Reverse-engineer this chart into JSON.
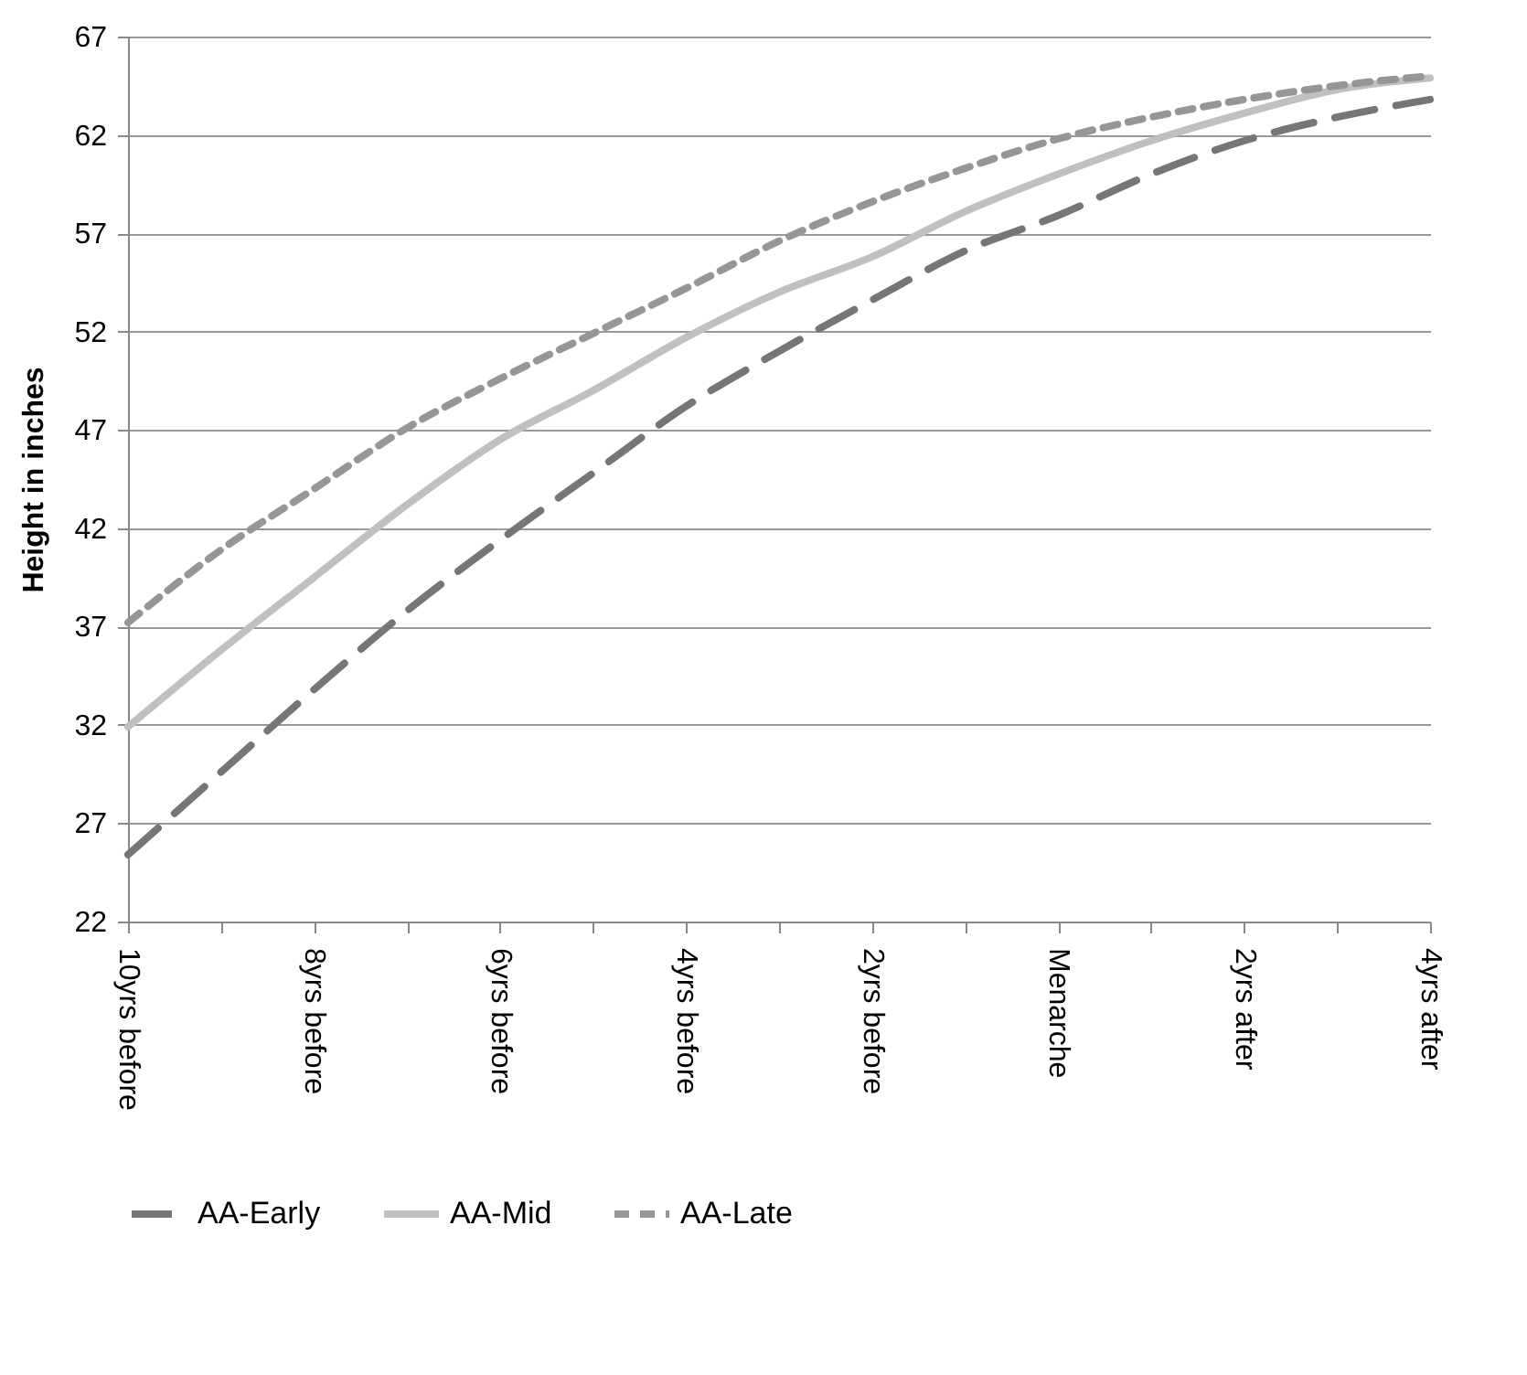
{
  "chart_data": {
    "type": "line",
    "ylabel": "Height in inches",
    "categories": [
      "10yrs before",
      null,
      "8yrs before",
      null,
      "6yrs before",
      null,
      "4yrs before",
      null,
      "2yrs before",
      null,
      "Menarche",
      null,
      "2yrs after",
      null,
      "4yrs after"
    ],
    "series": [
      {
        "name": "AA-Early",
        "color": "#767676",
        "line_style": "dashed",
        "values": [
          25.4,
          29.6,
          33.8,
          37.8,
          41.4,
          44.8,
          48.2,
          51.0,
          53.6,
          56.1,
          57.9,
          60.0,
          61.7,
          62.9,
          63.8
        ]
      },
      {
        "name": "AA-Mid",
        "color": "#c0c0c0",
        "line_style": "solid",
        "values": [
          31.9,
          35.8,
          39.5,
          43.2,
          46.5,
          49.0,
          51.7,
          54.0,
          55.8,
          58.1,
          60.0,
          61.7,
          63.1,
          64.3,
          64.9
        ]
      },
      {
        "name": "AA-Late",
        "color": "#969696",
        "line_style": "dotted",
        "values": [
          37.2,
          40.9,
          44.0,
          47.1,
          49.6,
          51.9,
          54.2,
          56.6,
          58.6,
          60.3,
          61.8,
          62.9,
          63.8,
          64.5,
          65.0
        ]
      }
    ],
    "ylim": [
      22,
      67
    ],
    "yticks": [
      22,
      27,
      32,
      37,
      42,
      47,
      52,
      57,
      62,
      67
    ],
    "grid": "y",
    "legend": "bottom",
    "marker": "none"
  }
}
